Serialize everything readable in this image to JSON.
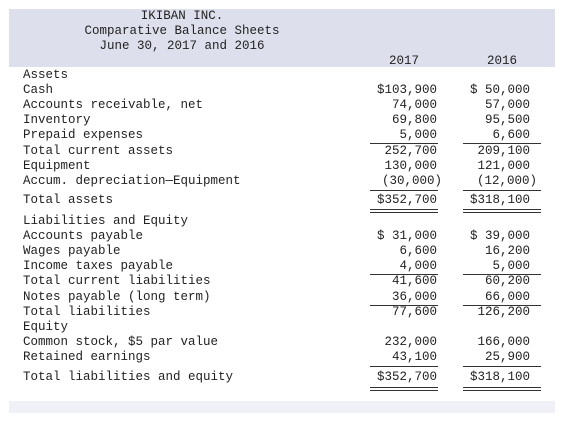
{
  "header": {
    "company": "IKIBAN INC.",
    "title": "Comparative Balance Sheets",
    "date": "June 30, 2017 and 2016",
    "col_2017": "2017",
    "col_2016": "2016"
  },
  "rows": [
    {
      "label": "Assets",
      "v2017": "",
      "v2016": ""
    },
    {
      "label": "Cash",
      "v2017": "$103,900",
      "v2016": "$ 50,000"
    },
    {
      "label": "Accounts receivable, net",
      "v2017": "74,000",
      "v2016": "57,000"
    },
    {
      "label": "Inventory",
      "v2017": "69,800",
      "v2016": "95,500"
    },
    {
      "label": "Prepaid expenses",
      "v2017": "5,000",
      "v2016": "6,600"
    },
    {
      "label": "Total current assets",
      "v2017": "252,700",
      "v2016": "209,100"
    },
    {
      "label": "Equipment",
      "v2017": "130,000",
      "v2016": "121,000"
    },
    {
      "label": "Accum. depreciation—Equipment",
      "v2017": "(30,000)",
      "v2016": "(12,000)"
    },
    {
      "label": "Total assets",
      "v2017": "$352,700",
      "v2016": "$318,100"
    },
    {
      "label": "Liabilities and Equity",
      "v2017": "",
      "v2016": ""
    },
    {
      "label": "Accounts payable",
      "v2017": "$ 31,000",
      "v2016": "$ 39,000"
    },
    {
      "label": "Wages payable",
      "v2017": "6,600",
      "v2016": "16,200"
    },
    {
      "label": "Income taxes payable",
      "v2017": "4,000",
      "v2016": "5,000"
    },
    {
      "label": "Total current liabilities",
      "v2017": "41,600",
      "v2016": "60,200"
    },
    {
      "label": "Notes payable (long term)",
      "v2017": "36,000",
      "v2016": "66,000"
    },
    {
      "label": "Total liabilities",
      "v2017": "77,600",
      "v2016": "126,200"
    },
    {
      "label": "Equity",
      "v2017": "",
      "v2016": ""
    },
    {
      "label": "Common stock, $5 par value",
      "v2017": "232,000",
      "v2016": "166,000"
    },
    {
      "label": "Retained earnings",
      "v2017": "43,100",
      "v2016": "25,900"
    },
    {
      "label": "Total liabilities and equity",
      "v2017": "$352,700",
      "v2016": "$318,100"
    }
  ]
}
